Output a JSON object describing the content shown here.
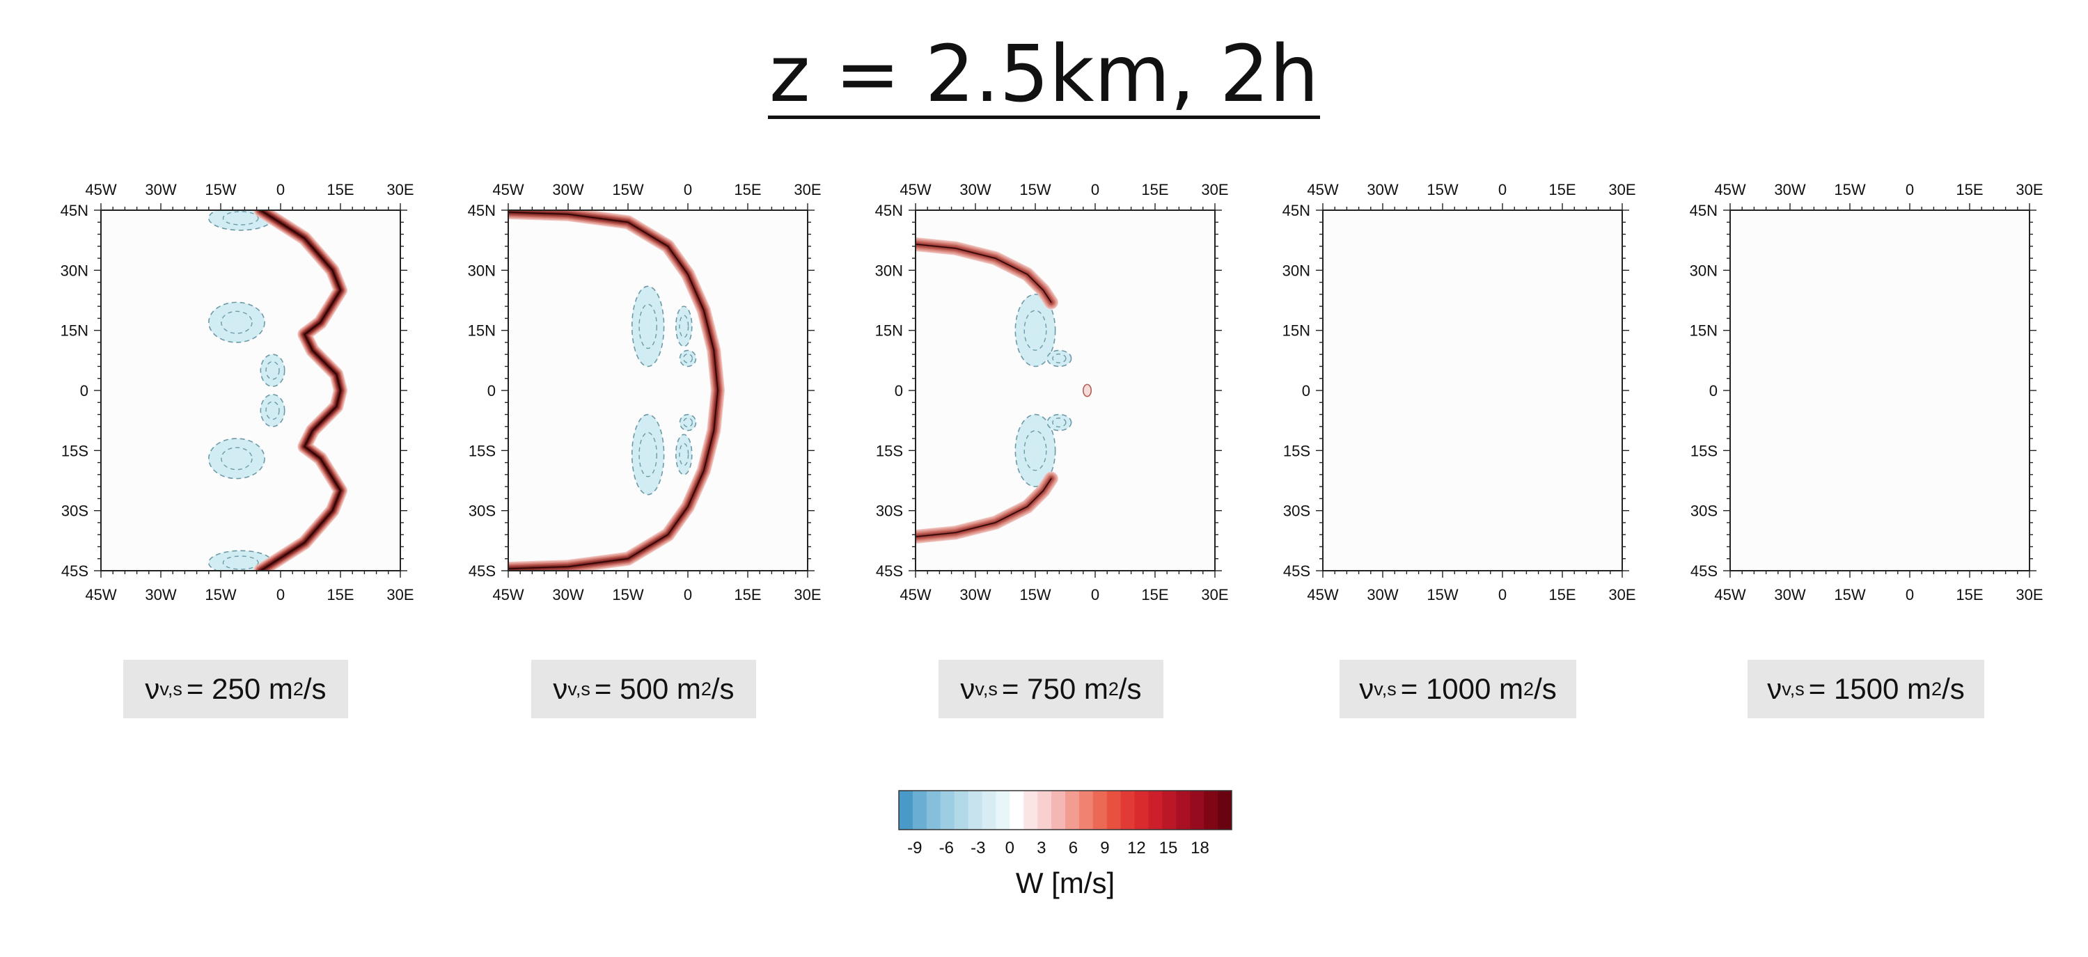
{
  "title": "z = 2.5km, 2h",
  "axis_ticks": {
    "x": [
      "45W",
      "30W",
      "15W",
      "0",
      "15E",
      "30E"
    ],
    "y": [
      "45N",
      "30N",
      "15N",
      "0",
      "15S",
      "30S",
      "45S"
    ]
  },
  "captions": [
    {
      "symbol": "ν",
      "sub": "v,s",
      "value": "= 250 m",
      "sup": "2",
      "unit": "/s"
    },
    {
      "symbol": "ν",
      "sub": "v,s",
      "value": "= 500 m",
      "sup": "2",
      "unit": "/s"
    },
    {
      "symbol": "ν",
      "sub": "v,s",
      "value": "= 750 m",
      "sup": "2",
      "unit": "/s"
    },
    {
      "symbol": "ν",
      "sub": "v,s",
      "value": "= 1000 m",
      "sup": "2",
      "unit": "/s"
    },
    {
      "symbol": "ν",
      "sub": "v,s",
      "value": "= 1500 m",
      "sup": "2",
      "unit": "/s"
    }
  ],
  "colorbar": {
    "label": "W [m/s]",
    "tick_labels": [
      "-9",
      "-6",
      "-3",
      "0",
      "3",
      "6",
      "9",
      "12",
      "15",
      "18"
    ],
    "tick_values": [
      -9,
      -6,
      -3,
      0,
      3,
      6,
      9,
      12,
      15,
      18
    ],
    "range": [
      -10.5,
      21
    ],
    "negative_colors": [
      "#4a9ac9",
      "#6aaed4",
      "#85bfdb",
      "#9dcde2",
      "#b2d9e8",
      "#c6e3ee",
      "#d7ecf3",
      "#e8f5f9"
    ],
    "positive_colors": [
      "#ffffff",
      "#fbe4e4",
      "#f8d0d0",
      "#f5b7b4",
      "#f29c92",
      "#ef8270",
      "#ec6a55",
      "#e85140",
      "#e23a34",
      "#d92a2e",
      "#cc1f2b",
      "#bc1727",
      "#aa1024",
      "#960b1e",
      "#800616",
      "#6a0310"
    ]
  },
  "chart_data": [
    {
      "type": "heatmap",
      "title": "",
      "xlabel": "",
      "ylabel": "",
      "xlim": [
        -45,
        30
      ],
      "ylim": [
        -45,
        45
      ],
      "field": "W [m/s]",
      "fronts": [
        {
          "sign": "positive",
          "levels": 7,
          "points": [
            [
              -5,
              45
            ],
            [
              6,
              38
            ],
            [
              13,
              30
            ],
            [
              15,
              25
            ],
            [
              10,
              17
            ],
            [
              6,
              14
            ],
            [
              8,
              10
            ],
            [
              14,
              4
            ],
            [
              15,
              0
            ],
            [
              14,
              -4
            ],
            [
              8,
              -10
            ],
            [
              6,
              -14
            ],
            [
              10,
              -17
            ],
            [
              15,
              -25
            ],
            [
              13,
              -30
            ],
            [
              6,
              -38
            ],
            [
              -5,
              -45
            ]
          ]
        }
      ],
      "negative_regions": [
        {
          "cx": -11,
          "cy": 17,
          "rx": 7,
          "ry": 5
        },
        {
          "cx": -11,
          "cy": -17,
          "rx": 7,
          "ry": 5
        },
        {
          "cx": -2,
          "cy": 5,
          "rx": 3,
          "ry": 4
        },
        {
          "cx": -2,
          "cy": -5,
          "rx": 3,
          "ry": 4
        },
        {
          "cx": -10,
          "cy": 43,
          "rx": 8,
          "ry": 3
        },
        {
          "cx": -10,
          "cy": -43,
          "rx": 8,
          "ry": 3
        }
      ]
    },
    {
      "type": "heatmap",
      "title": "",
      "xlabel": "",
      "ylabel": "",
      "xlim": [
        -45,
        30
      ],
      "ylim": [
        -45,
        45
      ],
      "field": "W [m/s]",
      "fronts": [
        {
          "sign": "positive",
          "levels": 6,
          "points": [
            [
              -45,
              44.5
            ],
            [
              -30,
              44
            ],
            [
              -15,
              42
            ],
            [
              -5,
              36
            ],
            [
              0,
              29
            ],
            [
              4,
              20
            ],
            [
              6.5,
              10
            ],
            [
              7.5,
              0
            ],
            [
              6.5,
              -10
            ],
            [
              4,
              -20
            ],
            [
              0,
              -29
            ],
            [
              -5,
              -36
            ],
            [
              -15,
              -42
            ],
            [
              -30,
              -44
            ],
            [
              -45,
              -44.5
            ]
          ]
        }
      ],
      "negative_regions": [
        {
          "cx": -10,
          "cy": 16,
          "rx": 4,
          "ry": 10
        },
        {
          "cx": -10,
          "cy": -16,
          "rx": 4,
          "ry": 10
        },
        {
          "cx": -1,
          "cy": 16,
          "rx": 2,
          "ry": 5
        },
        {
          "cx": -1,
          "cy": -16,
          "rx": 2,
          "ry": 5
        },
        {
          "cx": 0,
          "cy": 8,
          "rx": 2,
          "ry": 2
        },
        {
          "cx": 0,
          "cy": -8,
          "rx": 2,
          "ry": 2
        }
      ]
    },
    {
      "type": "heatmap",
      "title": "",
      "xlabel": "",
      "ylabel": "",
      "xlim": [
        -45,
        30
      ],
      "ylim": [
        -45,
        45
      ],
      "field": "W [m/s]",
      "fronts": [
        {
          "sign": "positive",
          "levels": 5,
          "points": [
            [
              -45,
              36.5
            ],
            [
              -35,
              35.5
            ],
            [
              -25,
              33
            ],
            [
              -17,
              29
            ],
            [
              -13,
              25
            ],
            [
              -11,
              22
            ]
          ]
        },
        {
          "sign": "positive",
          "levels": 5,
          "points": [
            [
              -45,
              -36.5
            ],
            [
              -35,
              -35.5
            ],
            [
              -25,
              -33
            ],
            [
              -17,
              -29
            ],
            [
              -13,
              -25
            ],
            [
              -11,
              -22
            ]
          ]
        }
      ],
      "positive_spots": [
        {
          "cx": -2,
          "cy": 0,
          "rx": 1,
          "ry": 1.5
        }
      ],
      "negative_regions": [
        {
          "cx": -15,
          "cy": 15,
          "rx": 5,
          "ry": 9
        },
        {
          "cx": -15,
          "cy": -15,
          "rx": 5,
          "ry": 9
        },
        {
          "cx": -9,
          "cy": 8,
          "rx": 3,
          "ry": 2
        },
        {
          "cx": -9,
          "cy": -8,
          "rx": 3,
          "ry": 2
        }
      ]
    },
    {
      "type": "heatmap",
      "title": "",
      "xlabel": "",
      "ylabel": "",
      "xlim": [
        -45,
        30
      ],
      "ylim": [
        -45,
        45
      ],
      "field": "W [m/s]",
      "fronts": [],
      "negative_regions": []
    },
    {
      "type": "heatmap",
      "title": "",
      "xlabel": "",
      "ylabel": "",
      "xlim": [
        -45,
        30
      ],
      "ylim": [
        -45,
        45
      ],
      "field": "W [m/s]",
      "fronts": [],
      "negative_regions": []
    }
  ]
}
